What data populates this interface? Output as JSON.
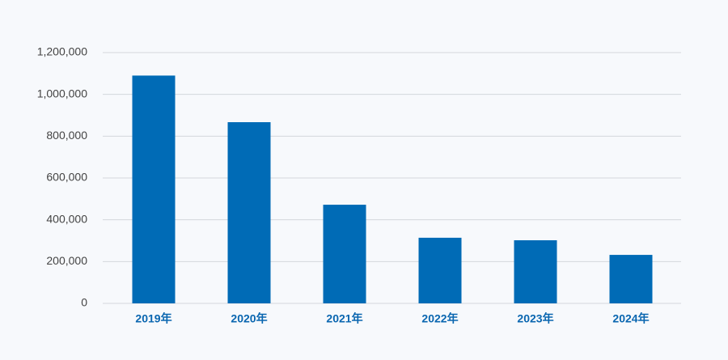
{
  "chart_data": {
    "type": "bar",
    "categories": [
      "2019年",
      "2020年",
      "2021年",
      "2022年",
      "2023年",
      "2024年"
    ],
    "values": [
      1090000,
      867000,
      472000,
      314000,
      302000,
      232000
    ],
    "color": "#006bb6",
    "ylim": [
      0,
      1200000
    ],
    "yticks": [
      0,
      {
        "value": 200000,
        "label": "200,000"
      },
      {
        "value": 400000,
        "label": "400,000"
      },
      {
        "value": 600000,
        "label": "600,000"
      },
      {
        "value": 800000,
        "label": "800,000"
      },
      {
        "value": 1000000,
        "label": "1,000,000"
      },
      {
        "value": 1200000,
        "label": "1,200,000"
      }
    ],
    "grid": true
  }
}
